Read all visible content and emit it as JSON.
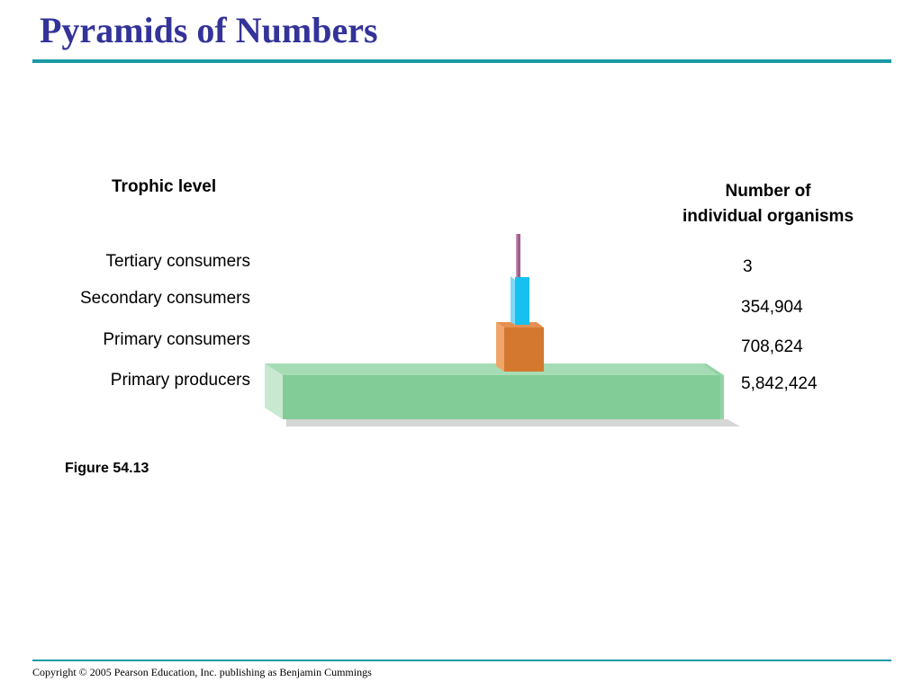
{
  "title": "Pyramids of Numbers",
  "headers": {
    "trophic_level": "Trophic level",
    "number_line1": "Number of",
    "number_line2": "individual organisms"
  },
  "levels": [
    {
      "name": "Tertiary consumers",
      "count": "3",
      "value": 3
    },
    {
      "name": "Secondary consumers",
      "count": "354,904",
      "value": 354904
    },
    {
      "name": "Primary consumers",
      "count": "708,624",
      "value": 708624
    },
    {
      "name": "Primary producers",
      "count": "5,842,424",
      "value": 5842424
    }
  ],
  "figure_label": "Figure 54.13",
  "copyright": "Copyright © 2005 Pearson Education, Inc. publishing as Benjamin Cummings",
  "colors": {
    "title": "#333399",
    "rule": "#1a9aa5",
    "tertiary": "#a0608a",
    "secondary": "#18c0f0",
    "primary_consumers": "#d4782f",
    "producers": "#82cc98"
  }
}
